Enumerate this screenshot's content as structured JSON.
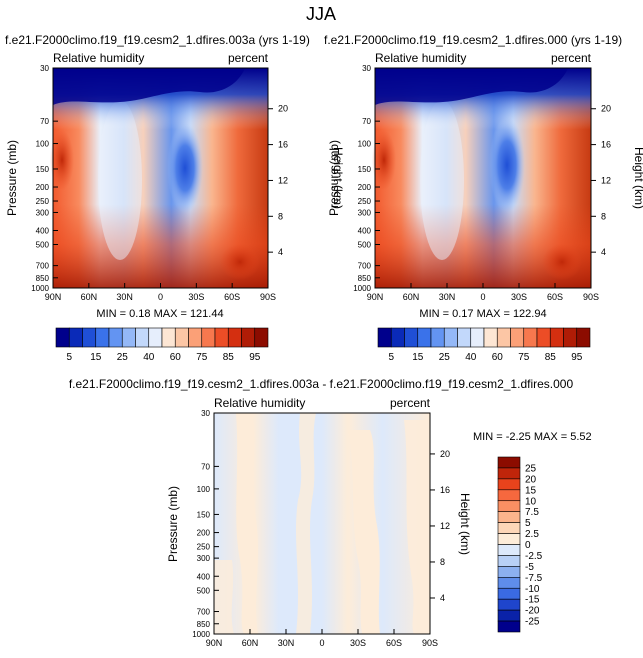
{
  "title": "JJA",
  "chart_data": [
    {
      "type": "heatmap",
      "title": "f.e21.F2000climo.f19_f19.cesm2_1.dfires.003a (yrs 1-19)",
      "left_label": "Relative humidity",
      "right_label": "percent",
      "ylabel": "Pressure (mb)",
      "ylabel_right": "Height (km)",
      "x_ticks": [
        "90N",
        "60N",
        "30N",
        "0",
        "30S",
        "60S",
        "90S"
      ],
      "y_ticks": [
        30,
        70,
        100,
        150,
        200,
        250,
        300,
        400,
        500,
        700,
        850,
        1000
      ],
      "y_ticks_right": [
        20,
        16,
        12,
        8,
        4
      ],
      "ylim": [
        1000,
        30
      ],
      "xlim": [
        90,
        -90
      ],
      "stats": "MIN =  0.18  MAX = 121.44"
    },
    {
      "type": "heatmap",
      "title": "f.e21.F2000climo.f19_f19.cesm2_1.dfires.000 (yrs 1-19)",
      "left_label": "Relative humidity",
      "right_label": "percent",
      "ylabel": "Pressure (mb)",
      "ylabel_right": "Height (km)",
      "x_ticks": [
        "90N",
        "60N",
        "30N",
        "0",
        "30S",
        "60S",
        "90S"
      ],
      "y_ticks": [
        30,
        70,
        100,
        150,
        200,
        250,
        300,
        400,
        500,
        700,
        850,
        1000
      ],
      "y_ticks_right": [
        20,
        16,
        12,
        8,
        4
      ],
      "ylim": [
        1000,
        30
      ],
      "xlim": [
        90,
        -90
      ],
      "stats": "MIN =  0.17  MAX = 122.94"
    },
    {
      "type": "heatmap",
      "title": "f.e21.F2000climo.f19_f19.cesm2_1.dfires.003a - f.e21.F2000climo.f19_f19.cesm2_1.dfires.000",
      "left_label": "Relative humidity",
      "right_label": "percent",
      "ylabel": "Pressure (mb)",
      "ylabel_right": "Height (km)",
      "x_ticks": [
        "90N",
        "60N",
        "30N",
        "0",
        "30S",
        "60S",
        "90S"
      ],
      "y_ticks": [
        30,
        70,
        100,
        150,
        200,
        250,
        300,
        400,
        500,
        700,
        850,
        1000
      ],
      "y_ticks_right": [
        20,
        16,
        12,
        8,
        4
      ],
      "ylim": [
        1000,
        30
      ],
      "xlim": [
        90,
        -90
      ],
      "stats": "MIN = -2.25  MAX =  5.52"
    }
  ],
  "colorbar_abs": {
    "labels": [
      "5",
      "15",
      "25",
      "40",
      "60",
      "75",
      "85",
      "95"
    ],
    "colors": [
      "#00008c",
      "#0a2ab8",
      "#1f4fd6",
      "#3a72ea",
      "#6394f2",
      "#94b8f7",
      "#c2d8fb",
      "#e6eefc",
      "#fde6d4",
      "#fcc6a5",
      "#fba077",
      "#f7784e",
      "#ec4d26",
      "#d42f10",
      "#b01c06",
      "#8c0c00"
    ]
  },
  "colorbar_diff": {
    "labels": [
      "25",
      "20",
      "15",
      "10",
      "7.5",
      "5",
      "2.5",
      "0",
      "-2.5",
      "-5",
      "-7.5",
      "-10",
      "-15",
      "-20",
      "-25"
    ],
    "colors": [
      "#8c0c00",
      "#c0250a",
      "#e8431c",
      "#f6683e",
      "#fa8f63",
      "#fcb48c",
      "#fdd6b8",
      "#fdecd9",
      "#dde9fb",
      "#b8d0f6",
      "#8cb0f0",
      "#5f8deb",
      "#3a6ae3",
      "#1f45cc",
      "#0a22a8",
      "#00008c"
    ]
  }
}
